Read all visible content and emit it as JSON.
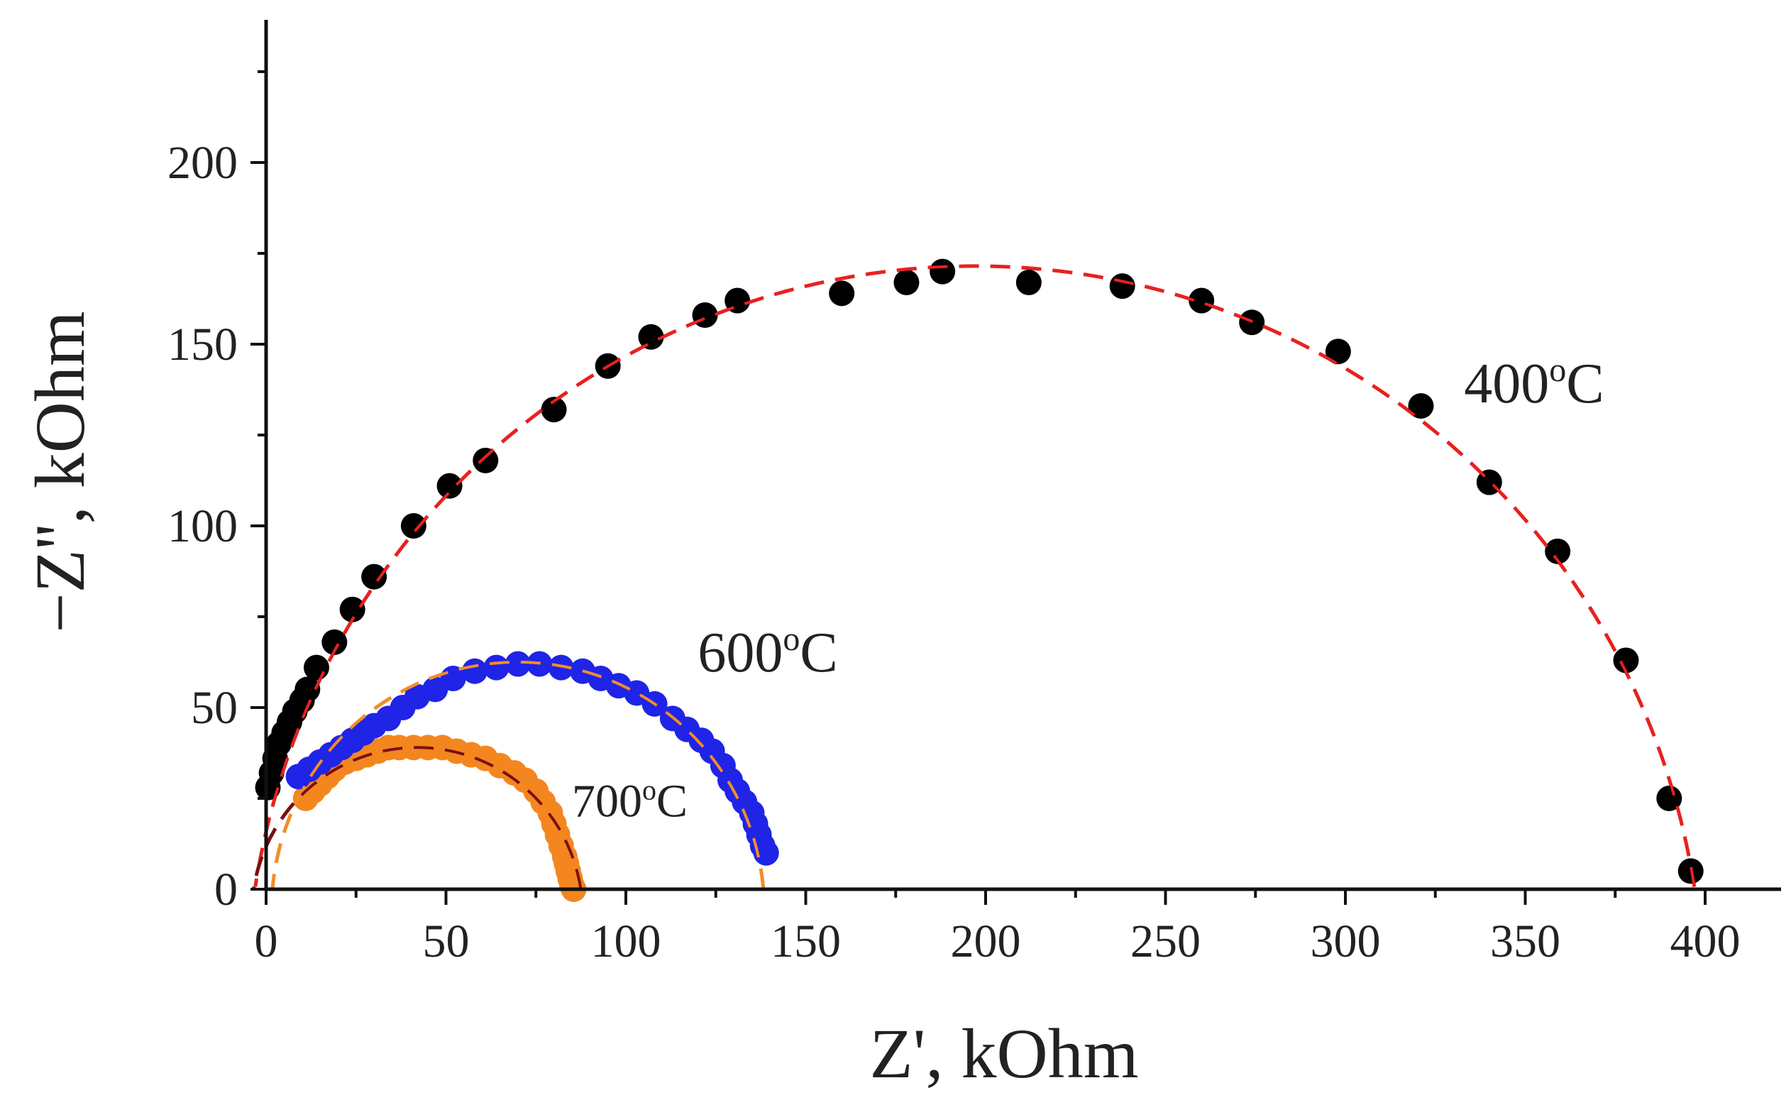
{
  "chart_data": {
    "type": "scatter",
    "title": "",
    "xlabel": "Z', kOhm",
    "ylabel": "−Z'', kOhm",
    "xlim": [
      0,
      420
    ],
    "ylim": [
      0,
      240
    ],
    "xticks": [
      0,
      50,
      100,
      150,
      200,
      250,
      300,
      350,
      400
    ],
    "yticks": [
      0,
      50,
      100,
      150,
      200
    ],
    "grid": false,
    "series": [
      {
        "name": "400",
        "label_main": "400",
        "label_sup": "o",
        "label_unit": "C",
        "label_at": [
          333,
          134
        ],
        "marker_color": "#000000",
        "fit_color": "#e8211f",
        "fit": {
          "center": [
            197,
            -31
          ],
          "radius": 202.5
        },
        "x": [
          0.5,
          1.5,
          2.5,
          3.5,
          5,
          6.5,
          8,
          10,
          11.5,
          14,
          19,
          24,
          30,
          41,
          51,
          61,
          80,
          95,
          107,
          122,
          131,
          160,
          178,
          188,
          212,
          238,
          260,
          274,
          298,
          321,
          340,
          359,
          378,
          390,
          396
        ],
        "y": [
          28,
          32,
          36,
          40,
          43,
          46,
          49,
          52,
          55,
          61,
          68,
          77,
          86,
          100,
          111,
          118,
          132,
          144,
          152,
          158,
          162,
          164,
          167,
          170,
          167,
          166,
          162,
          156,
          148,
          133,
          112,
          93,
          63,
          25,
          5
        ]
      },
      {
        "name": "600",
        "label_main": "600",
        "label_sup": "o",
        "label_unit": "C",
        "label_at": [
          120,
          60
        ],
        "marker_color": "#1f24e6",
        "fit_color": "#f28d2a",
        "fit": {
          "center": [
            70,
            -6
          ],
          "radius": 68.5
        },
        "x": [
          9,
          12,
          15,
          18,
          21,
          24,
          27,
          30,
          34,
          38,
          42,
          47,
          52,
          58,
          64,
          70,
          76,
          82,
          88,
          93,
          98,
          103,
          108,
          113,
          117,
          121,
          124,
          127,
          129,
          131,
          133,
          135,
          136,
          137,
          138,
          139
        ],
        "y": [
          31,
          33,
          35,
          37,
          39,
          41,
          43,
          45,
          47,
          50,
          53,
          55,
          58,
          60,
          61,
          62,
          62,
          61,
          60,
          58,
          56,
          54,
          51,
          47,
          44,
          41,
          38,
          34,
          30,
          27,
          24,
          21,
          18,
          15,
          12,
          10
        ]
      },
      {
        "name": "700",
        "label_main": "700",
        "label_sup": "o",
        "label_unit": "C",
        "label_at": [
          85,
          20
        ],
        "marker_color": "#f4861f",
        "fit_color": "#7a1010",
        "fit": {
          "center": [
            42,
            -7
          ],
          "radius": 46
        },
        "x": [
          11,
          13,
          15,
          17,
          19,
          22,
          25,
          28,
          31,
          34,
          37,
          41,
          45,
          49,
          53,
          57,
          61,
          65,
          69,
          72,
          75,
          77,
          79,
          80,
          81,
          82,
          83,
          83.5,
          84,
          84.5,
          85,
          85.5
        ],
        "y": [
          25,
          27,
          29,
          31,
          33,
          35,
          36,
          37,
          38,
          39,
          39,
          39,
          39,
          39,
          38,
          37,
          36,
          34,
          32,
          30,
          27,
          24,
          21,
          18,
          15,
          12,
          9,
          7,
          5,
          3,
          1,
          0
        ]
      }
    ]
  }
}
